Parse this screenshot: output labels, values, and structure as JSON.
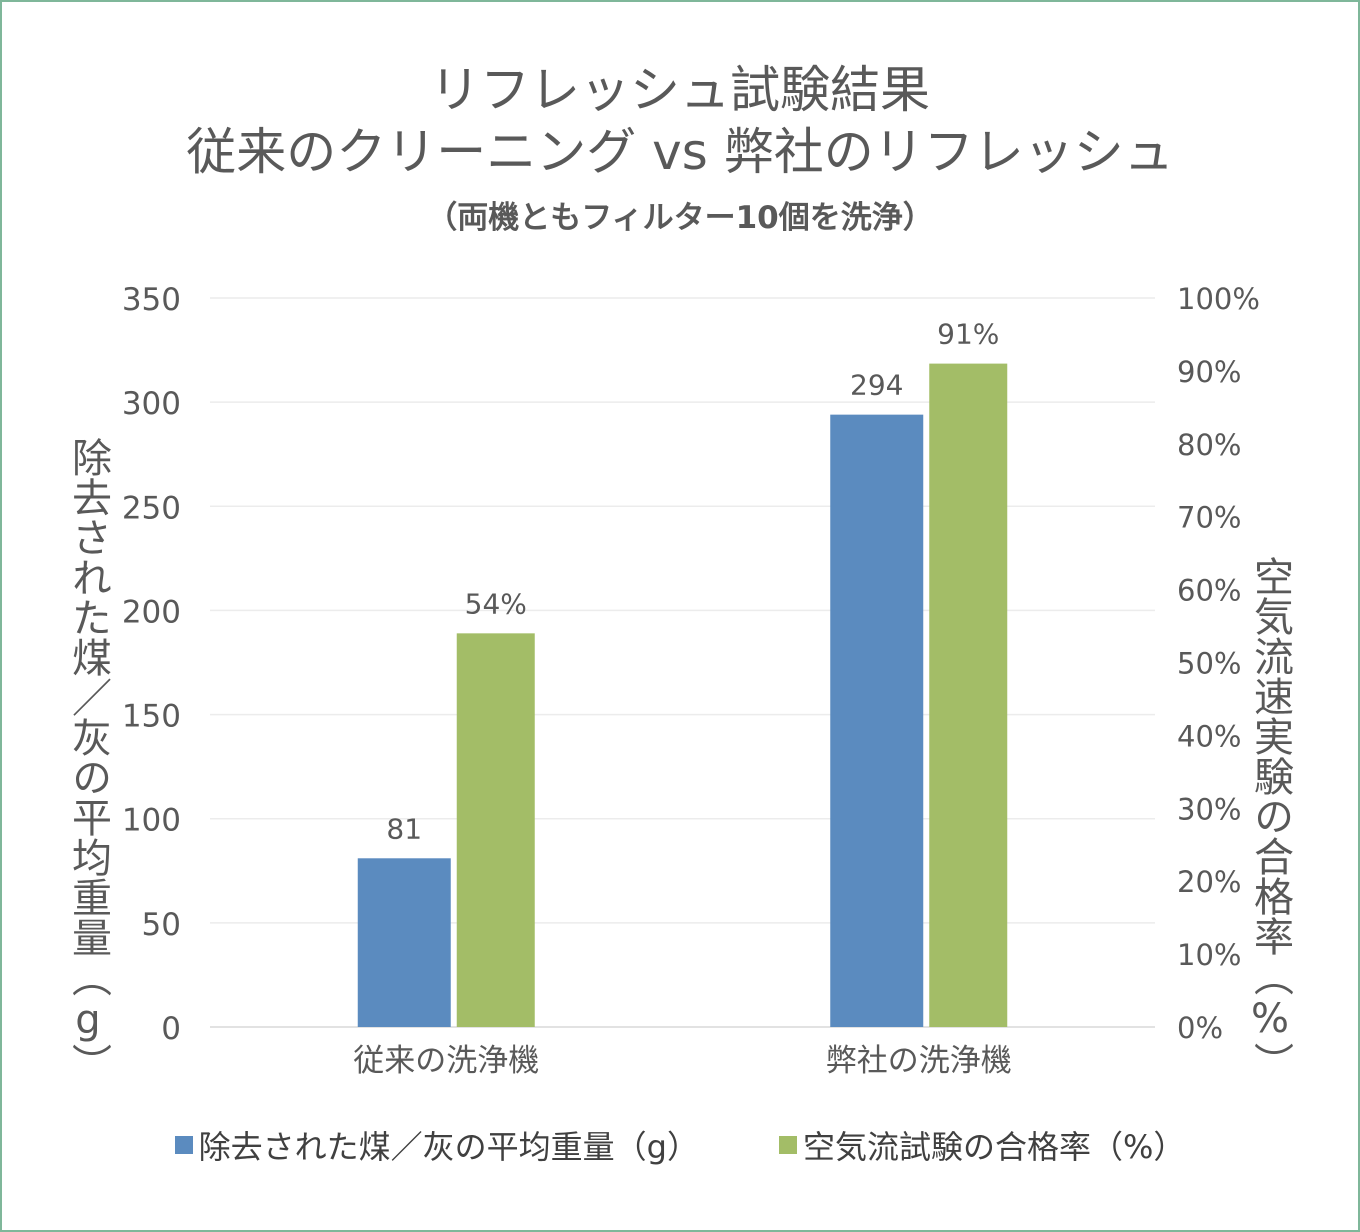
{
  "chart_data": {
    "type": "bar",
    "title": "リフレッシュ試験結果",
    "title_line2": "従来のクリーニング vs 弊社のリフレッシュ",
    "subtitle": "（両機ともフィルター10個を洗浄）",
    "categories": [
      "従来の洗浄機",
      "弊社の洗浄機"
    ],
    "series": [
      {
        "name": "除去された煤／灰の平均重量（g）",
        "values": [
          81,
          294
        ],
        "data_labels": [
          "81",
          "294"
        ],
        "axis": "left",
        "color": "#5b8bbf"
      },
      {
        "name": "空気流試験の合格率（%）",
        "values": [
          0.54,
          0.91
        ],
        "data_labels": [
          "54%",
          "91%"
        ],
        "axis": "right",
        "color": "#a3bd67"
      }
    ],
    "ylabel": "除去された煤／灰の平均重量（g）",
    "ylabel_right": "空気流速実験の合格率（%）",
    "ylim": [
      0,
      350
    ],
    "ylim_right": [
      0,
      1
    ],
    "yticks": [
      "0",
      "50",
      "100",
      "150",
      "200",
      "250",
      "300",
      "350"
    ],
    "yticks_right": [
      "0%",
      "10%",
      "20%",
      "30%",
      "40%",
      "50%",
      "60%",
      "70%",
      "80%",
      "90%",
      "100%"
    ],
    "grid": true,
    "legend_position": "bottom"
  }
}
